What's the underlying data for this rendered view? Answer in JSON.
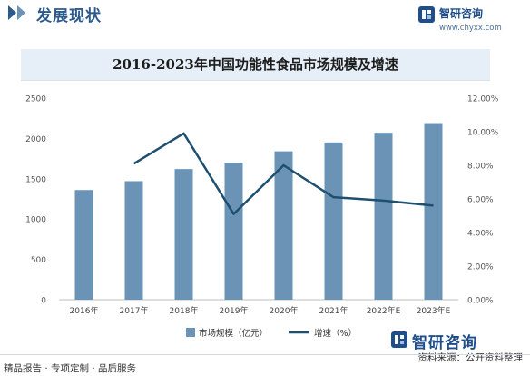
{
  "header": {
    "section_title": "发展现状",
    "brand_name": "智研咨询",
    "brand_url": "www.chyxx.com"
  },
  "chart_data": {
    "type": "bar",
    "title": "2016-2023年中国功能性食品市场规模及增速",
    "categories": [
      "2016年",
      "2017年",
      "2018年",
      "2019年",
      "2020年",
      "2021年",
      "2022年E",
      "2023年E"
    ],
    "series": [
      {
        "name": "市场规模（亿元）",
        "type": "bar",
        "axis": "left",
        "values": [
          1360,
          1470,
          1620,
          1700,
          1840,
          1950,
          2070,
          2190
        ]
      },
      {
        "name": "增速（%）",
        "type": "line",
        "axis": "right",
        "values": [
          null,
          8.1,
          9.9,
          5.1,
          8.0,
          6.1,
          5.9,
          5.6
        ]
      }
    ],
    "y_left": {
      "min": 0,
      "max": 2500,
      "ticks": [
        "0",
        "500",
        "1000",
        "1500",
        "2000",
        "2500"
      ]
    },
    "y_right": {
      "min": 0,
      "max": 12,
      "ticks": [
        "0.00%",
        "2.00%",
        "4.00%",
        "6.00%",
        "8.00%",
        "10.00%",
        "12.00%"
      ]
    },
    "grid": false,
    "legend_position": "bottom",
    "colors": {
      "bar": "#6a93b5",
      "line": "#1e4f6f"
    }
  },
  "footer": {
    "left": "精品报告 · 专项定制 · 品质服务",
    "source": "资料来源：公开资料整理",
    "brand_name": "智研咨询"
  }
}
